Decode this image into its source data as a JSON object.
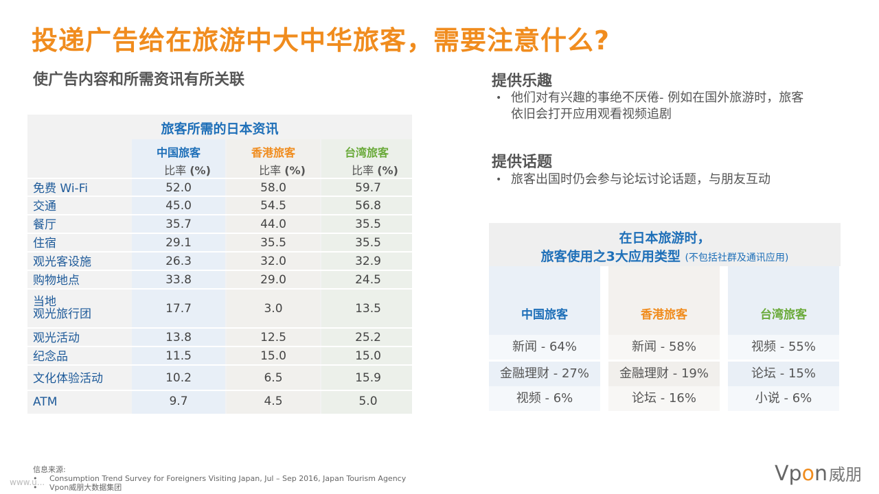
{
  "title": "投递广告给在旅游中大中华旅客，需要注意什么?",
  "subtitle": "使广告内容和所需资讯有所关联",
  "table": {
    "title": "旅客所需的日本资讯",
    "headers": [
      "中国旅客",
      "香港旅客",
      "台湾旅客"
    ],
    "unit_prefix": "比率",
    "unit_suffix": "(%)",
    "rows": [
      {
        "label": "免费 Wi-Fi",
        "cn": "52.0",
        "hk": "58.0",
        "tw": "59.7"
      },
      {
        "label": "交通",
        "cn": "45.0",
        "hk": "54.5",
        "tw": "56.8"
      },
      {
        "label": "餐厅",
        "cn": "35.7",
        "hk": "44.0",
        "tw": "35.5"
      },
      {
        "label": "住宿",
        "cn": "29.1",
        "hk": "35.5",
        "tw": "35.5"
      },
      {
        "label": "观光客设施",
        "cn": "26.3",
        "hk": "32.0",
        "tw": "32.9"
      },
      {
        "label": "购物地点",
        "cn": "33.8",
        "hk": "29.0",
        "tw": "24.5"
      },
      {
        "label": "当地",
        "label2": "观光旅行团",
        "cn": "17.7",
        "hk": "3.0",
        "tw": "13.5"
      },
      {
        "label": "观光活动",
        "cn": "13.8",
        "hk": "12.5",
        "tw": "25.2"
      },
      {
        "label": "纪念品",
        "cn": "11.5",
        "hk": "15.0",
        "tw": "15.0"
      },
      {
        "label": "文化体验活动",
        "cn": "10.2",
        "hk": "6.5",
        "tw": "15.9"
      },
      {
        "label": "ATM",
        "cn": "9.7",
        "hk": "4.5",
        "tw": "5.0"
      }
    ]
  },
  "fun": {
    "heading": "提供乐趣",
    "bullet_line1": "他们对有兴趣的事绝不厌倦- 例如在国外旅游时，旅客",
    "bullet_line2": "依旧会打开应用观看视频追剧"
  },
  "topics": {
    "heading": "提供话题",
    "bullet": "旅客出国时仍会参与论坛讨论话题，与朋友互动"
  },
  "apps": {
    "title_line1": "在日本旅游时，",
    "title_line2": "旅客使用之3大应用类型",
    "title_note": "(不包括社群及通讯应用)",
    "cols": [
      {
        "name": "中国旅客",
        "color": "#1e6fb8",
        "items": [
          "新闻 - 64%",
          "金融理财 - 27%",
          "视频 -    6%"
        ]
      },
      {
        "name": "香港旅客",
        "color": "#f08c1e",
        "items": [
          "新闻 - 58%",
          "金融理财 - 19%",
          "论坛 - 16%"
        ]
      },
      {
        "name": "台湾旅客",
        "color": "#6aaa3a",
        "items": [
          "视频 - 55%",
          "论坛 - 15%",
          "小说 -  6%"
        ]
      }
    ]
  },
  "footer": {
    "label": "信息来源:",
    "src1": "Consumption Trend Survey for Foreigners Visiting Japan, Jul – Sep 2016, Japan Tourism Agency",
    "src2": "Vpon威朋大数据集团"
  },
  "watermark": "www.u...",
  "logo": {
    "v": "Vp",
    "o": "o",
    "n": "n",
    "cn": "威朋"
  },
  "colors": {
    "accent": "#f08c1e",
    "blue": "#1e6fb8",
    "green": "#6aaa3a"
  }
}
